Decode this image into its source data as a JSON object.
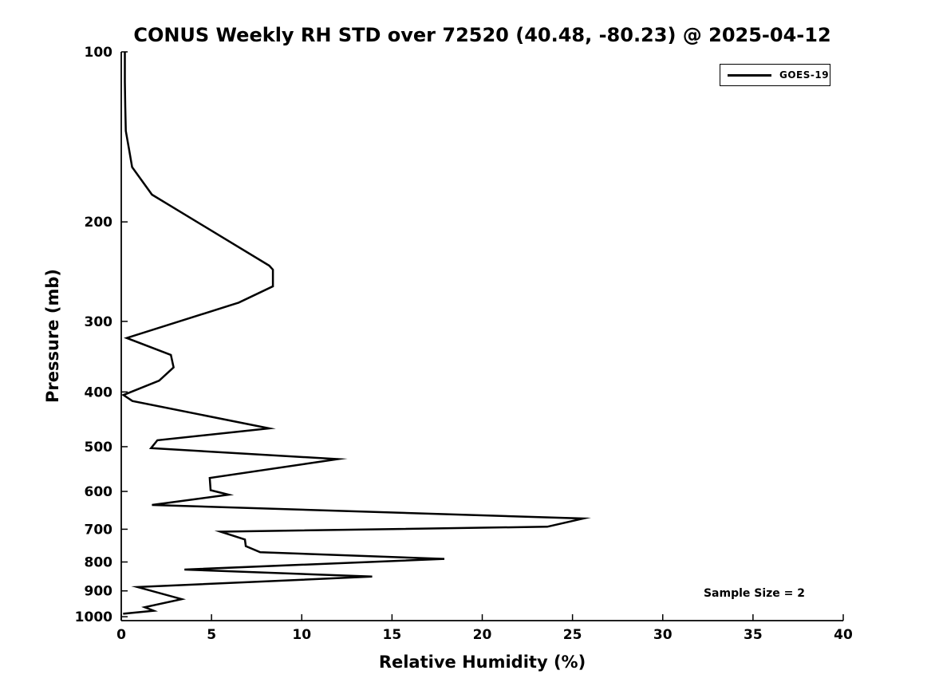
{
  "figure": {
    "title": "CONUS Weekly RH STD over 72520 (40.48, -80.23) @ 2025-04-12",
    "xlabel": "Relative Humidity (%)",
    "ylabel": "Pressure (mb)",
    "legend": {
      "entries": [
        {
          "label": "GOES-19",
          "color": "#000000"
        }
      ]
    },
    "annotation": "Sample Size = 2",
    "colors": {
      "line": "#000000",
      "background": "#ffffff",
      "text": "#000000"
    }
  },
  "chart_data": {
    "type": "line",
    "title": "CONUS Weekly RH STD over 72520 (40.48, -80.23) @ 2025-04-12",
    "xlabel": "Relative Humidity (%)",
    "ylabel": "Pressure (mb)",
    "xlim": [
      0,
      40
    ],
    "ylim": [
      100,
      1016
    ],
    "yscale": "log",
    "y_axis_inverted": true,
    "xticks": [
      0,
      5,
      10,
      15,
      20,
      25,
      30,
      35,
      40
    ],
    "yticks": [
      100,
      200,
      300,
      400,
      500,
      600,
      700,
      800,
      900,
      1000
    ],
    "grid": false,
    "legend_position": "upper right",
    "annotation": "Sample Size = 2",
    "series": [
      {
        "name": "GOES-19",
        "color": "#000000",
        "linewidth": 2.5,
        "point_format": "[pressure_mb, rh_std_percent]",
        "points": [
          [
            100,
            0.2
          ],
          [
            113,
            0.2
          ],
          [
            125,
            0.22
          ],
          [
            138,
            0.25
          ],
          [
            150,
            0.45
          ],
          [
            160,
            0.6
          ],
          [
            179,
            1.7
          ],
          [
            239,
            8.2
          ],
          [
            243,
            8.4
          ],
          [
            260,
            8.4
          ],
          [
            278,
            6.5
          ],
          [
            321,
            0.3
          ],
          [
            344,
            2.75
          ],
          [
            362,
            2.9
          ],
          [
            382,
            2.1
          ],
          [
            405,
            0.12
          ],
          [
            415,
            0.62
          ],
          [
            464,
            8.2
          ],
          [
            487,
            2.0
          ],
          [
            503,
            1.65
          ],
          [
            526,
            12.0
          ],
          [
            568,
            4.9
          ],
          [
            597,
            4.95
          ],
          [
            608,
            5.95
          ],
          [
            634,
            1.7
          ],
          [
            670,
            25.6
          ],
          [
            693,
            23.6
          ],
          [
            707,
            5.5
          ],
          [
            730,
            6.85
          ],
          [
            750,
            6.9
          ],
          [
            769,
            7.7
          ],
          [
            790,
            17.9
          ],
          [
            825,
            3.5
          ],
          [
            849,
            13.9
          ],
          [
            886,
            0.9
          ],
          [
            931,
            3.35
          ],
          [
            962,
            1.3
          ],
          [
            976,
            1.8
          ],
          [
            988,
            0.1
          ]
        ]
      }
    ]
  }
}
